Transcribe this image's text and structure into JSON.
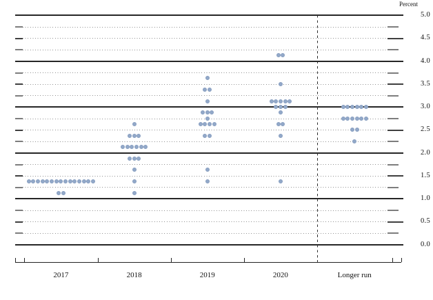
{
  "chart_data": {
    "type": "scatter",
    "variant": "fomc-dot-plot",
    "title": "",
    "ylabel": "Percent",
    "ylim": [
      0.0,
      5.0
    ],
    "y_label_step": 0.5,
    "y_grid_step": 0.25,
    "y_tick_labels": [
      "5.0",
      "4.5",
      "4.0",
      "3.5",
      "3.0",
      "2.5",
      "2.0",
      "1.5",
      "1.0",
      "0.5",
      "0.0"
    ],
    "grid": "solid lines at whole percents, dotted lines at quarter percents",
    "legend": null,
    "categories": [
      "2017",
      "2018",
      "2019",
      "2020",
      "Longer run"
    ],
    "separator_before": "Longer run",
    "series": [
      {
        "name": "2017",
        "dots": [
          {
            "rate": 1.375,
            "count": 15
          },
          {
            "rate": 1.125,
            "count": 2
          }
        ]
      },
      {
        "name": "2018",
        "dots": [
          {
            "rate": 2.625,
            "count": 1
          },
          {
            "rate": 2.375,
            "count": 3
          },
          {
            "rate": 2.125,
            "count": 6
          },
          {
            "rate": 1.875,
            "count": 3
          },
          {
            "rate": 1.625,
            "count": 1
          },
          {
            "rate": 1.375,
            "count": 1
          },
          {
            "rate": 1.125,
            "count": 1
          }
        ]
      },
      {
        "name": "2019",
        "dots": [
          {
            "rate": 3.625,
            "count": 1
          },
          {
            "rate": 3.375,
            "count": 2
          },
          {
            "rate": 3.125,
            "count": 1
          },
          {
            "rate": 2.875,
            "count": 3
          },
          {
            "rate": 2.75,
            "count": 1
          },
          {
            "rate": 2.625,
            "count": 4
          },
          {
            "rate": 2.375,
            "count": 2
          },
          {
            "rate": 1.625,
            "count": 1
          },
          {
            "rate": 1.375,
            "count": 1
          }
        ]
      },
      {
        "name": "2020",
        "dots": [
          {
            "rate": 4.125,
            "count": 2
          },
          {
            "rate": 3.5,
            "count": 1
          },
          {
            "rate": 3.125,
            "count": 5
          },
          {
            "rate": 3.0,
            "count": 3
          },
          {
            "rate": 2.875,
            "count": 1
          },
          {
            "rate": 2.625,
            "count": 2
          },
          {
            "rate": 2.375,
            "count": 1
          },
          {
            "rate": 1.375,
            "count": 1
          }
        ]
      },
      {
        "name": "Longer run",
        "dots": [
          {
            "rate": 3.0,
            "count": 6
          },
          {
            "rate": 2.75,
            "count": 6
          },
          {
            "rate": 2.5,
            "count": 2
          },
          {
            "rate": 2.25,
            "count": 1
          }
        ]
      }
    ],
    "colors": {
      "dot": "#93a9c9",
      "solid_grid": "#262626",
      "dotted_grid": "#8f8f8f",
      "axis": "#222222",
      "text": "#111111"
    }
  }
}
